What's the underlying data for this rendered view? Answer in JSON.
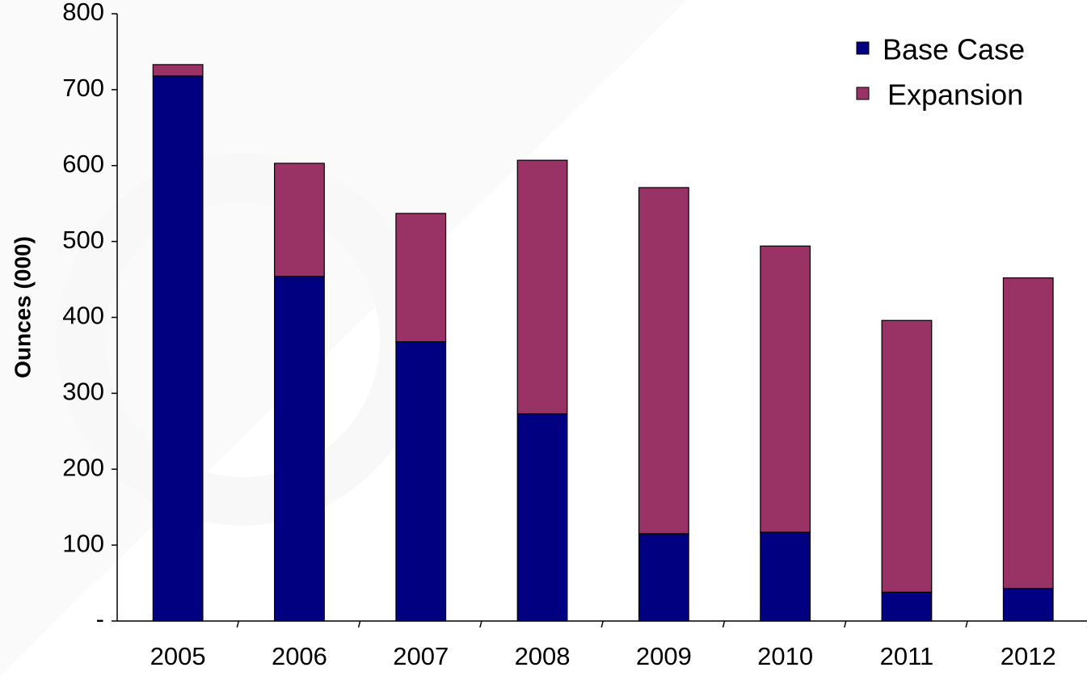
{
  "chart_data": {
    "type": "stacked_bar",
    "y_label": "Ounces (000)",
    "categories": [
      "2005",
      "2006",
      "2007",
      "2008",
      "2009",
      "2010",
      "2011",
      "2012"
    ],
    "series": [
      {
        "name": "Base Case",
        "color": "#000080",
        "values": [
          718,
          454,
          368,
          273,
          115,
          117,
          38,
          43
        ]
      },
      {
        "name": "Expansion",
        "color": "#993366",
        "values": [
          15,
          149,
          169,
          334,
          456,
          377,
          358,
          409
        ]
      }
    ],
    "ylim": [
      0,
      800
    ],
    "yticks": [
      {
        "value": 0,
        "label": "-"
      },
      100,
      200,
      300,
      400,
      500,
      600,
      700,
      800
    ],
    "legend": "upper right"
  }
}
